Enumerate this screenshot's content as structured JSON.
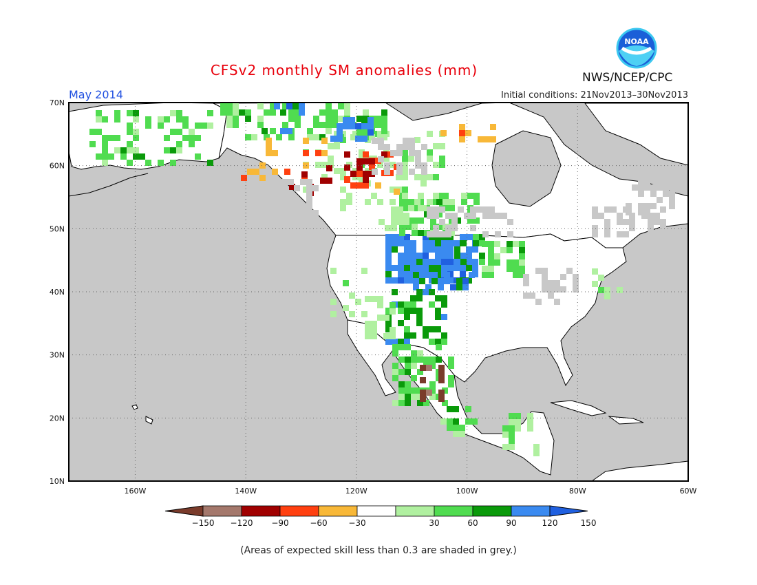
{
  "header": {
    "title": "CFSv2 monthly SM anomalies (mm)",
    "period": "May 2014",
    "initial_conditions": "Initial conditions: 21Nov2013–30Nov2013",
    "agency": "NWS/NCEP/CPC",
    "logo_text": "NOAA"
  },
  "map": {
    "lon_range": [
      -172,
      -60
    ],
    "lat_range": [
      10,
      70
    ],
    "lat_labels": [
      "70N",
      "60N",
      "50N",
      "40N",
      "30N",
      "20N",
      "10N"
    ],
    "lon_labels": [
      "160W",
      "140W",
      "120W",
      "100W",
      "80W",
      "60W"
    ],
    "no_skill_color": "#c8c8c8",
    "ocean_color": "#c8c8c8",
    "land_color": "#ffffff"
  },
  "legend": {
    "labels": [
      "−150",
      "−120",
      "−90",
      "−60",
      "−30",
      "30",
      "60",
      "90",
      "120",
      "150"
    ],
    "colors": [
      "#7a3b2b",
      "#a4786c",
      "#a00000",
      "#ff4010",
      "#f8b838",
      "#ffffff",
      "#b0f0a0",
      "#50dc50",
      "#0a9a0a",
      "#3a8af0",
      "#2060e0"
    ]
  },
  "footnote": "(Areas of expected skill less than 0.3 are shaded in grey.)"
}
